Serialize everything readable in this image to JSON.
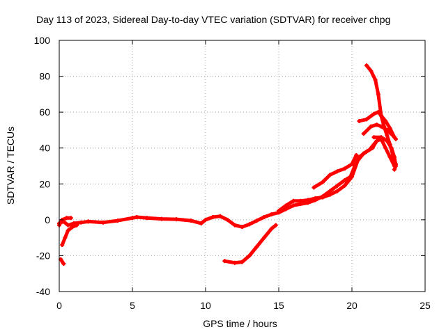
{
  "chart_data": {
    "type": "scatter",
    "title": "Day 113 of 2023, Sidereal Day-to-day VTEC variation (SDTVAR) for receiver chpg",
    "xlabel": "GPS time / hours",
    "ylabel": "SDTVAR / TECUs",
    "xlim": [
      0,
      25
    ],
    "ylim": [
      -40,
      100
    ],
    "xticks": [
      0,
      5,
      10,
      15,
      20,
      25
    ],
    "yticks": [
      -40,
      -20,
      0,
      20,
      40,
      60,
      80,
      100
    ],
    "grid": true,
    "series_color": "#ff0000",
    "series": [
      {
        "name": "trace-main",
        "points": [
          [
            0.0,
            -2
          ],
          [
            0.3,
            -1
          ],
          [
            0.6,
            -3
          ],
          [
            1.0,
            -2
          ],
          [
            1.5,
            -1.5
          ],
          [
            2.0,
            -1
          ],
          [
            3.0,
            -1.5
          ],
          [
            4.0,
            -0.5
          ],
          [
            5.0,
            1
          ],
          [
            5.3,
            1.5
          ],
          [
            6.0,
            1
          ],
          [
            7.0,
            0.5
          ],
          [
            8.0,
            0.3
          ],
          [
            9.0,
            -0.5
          ],
          [
            9.7,
            -2
          ],
          [
            10.0,
            0
          ],
          [
            10.5,
            1.5
          ],
          [
            11.0,
            2
          ],
          [
            11.5,
            0
          ],
          [
            12.0,
            -3
          ],
          [
            12.5,
            -4
          ],
          [
            13.0,
            -2.5
          ],
          [
            13.5,
            -0.5
          ],
          [
            14.0,
            1.5
          ],
          [
            14.5,
            3
          ],
          [
            15.0,
            4
          ],
          [
            15.5,
            6
          ],
          [
            16.0,
            8
          ],
          [
            17.0,
            9.5
          ],
          [
            17.5,
            11
          ],
          [
            18.0,
            13
          ],
          [
            18.5,
            16
          ],
          [
            19.0,
            19
          ],
          [
            19.5,
            22
          ],
          [
            19.9,
            24
          ],
          [
            20.2,
            30
          ],
          [
            20.5,
            35
          ],
          [
            21.0,
            38
          ],
          [
            21.4,
            40
          ],
          [
            21.7,
            44
          ],
          [
            22.0,
            45
          ],
          [
            22.3,
            40
          ],
          [
            22.6,
            35
          ],
          [
            22.9,
            30
          ]
        ]
      },
      {
        "name": "trace-start-low",
        "points": [
          [
            0.1,
            -22
          ],
          [
            0.3,
            -24.5
          ]
        ]
      },
      {
        "name": "trace-start-drop",
        "points": [
          [
            0.2,
            -14
          ],
          [
            0.4,
            -10
          ],
          [
            0.6,
            -6
          ],
          [
            0.9,
            -4
          ],
          [
            1.2,
            -3
          ]
        ]
      },
      {
        "name": "trace-start-upper",
        "points": [
          [
            0.0,
            -3
          ],
          [
            0.2,
            0
          ],
          [
            0.5,
            1
          ],
          [
            0.8,
            1
          ]
        ]
      },
      {
        "name": "trace-dip",
        "points": [
          [
            11.3,
            -23
          ],
          [
            12.0,
            -24
          ],
          [
            12.5,
            -23.5
          ],
          [
            13.0,
            -20
          ],
          [
            13.5,
            -15
          ],
          [
            14.0,
            -10
          ],
          [
            14.5,
            -5
          ],
          [
            14.8,
            -3
          ]
        ]
      },
      {
        "name": "trace-mid-upper",
        "points": [
          [
            15.0,
            5
          ],
          [
            15.5,
            8
          ],
          [
            16.0,
            10.5
          ],
          [
            16.5,
            10.5
          ],
          [
            17.0,
            11
          ],
          [
            17.5,
            12
          ],
          [
            18.0,
            12.5
          ],
          [
            18.5,
            14
          ],
          [
            19.0,
            16
          ],
          [
            19.5,
            19
          ],
          [
            20.0,
            24
          ],
          [
            20.4,
            33
          ],
          [
            20.8,
            37
          ],
          [
            21.2,
            39
          ],
          [
            21.5,
            42
          ],
          [
            21.7,
            44
          ]
        ]
      },
      {
        "name": "trace-branch",
        "points": [
          [
            17.4,
            18
          ],
          [
            18.0,
            21
          ],
          [
            18.5,
            25
          ],
          [
            19.0,
            27
          ],
          [
            19.5,
            28.5
          ],
          [
            20.0,
            31
          ],
          [
            20.3,
            36
          ]
        ]
      },
      {
        "name": "trace-peak",
        "points": [
          [
            21.0,
            86
          ],
          [
            21.3,
            83
          ],
          [
            21.6,
            78
          ],
          [
            21.8,
            70
          ],
          [
            22.0,
            58
          ],
          [
            22.2,
            52
          ],
          [
            22.4,
            47
          ],
          [
            22.6,
            42
          ],
          [
            22.8,
            36
          ],
          [
            23.0,
            31
          ]
        ]
      },
      {
        "name": "trace-side-a",
        "points": [
          [
            20.5,
            55
          ],
          [
            21.0,
            56
          ],
          [
            21.5,
            59
          ],
          [
            21.8,
            60
          ],
          [
            22.0,
            58
          ],
          [
            22.3,
            55
          ],
          [
            22.6,
            51
          ],
          [
            22.9,
            46
          ]
        ]
      },
      {
        "name": "trace-side-b",
        "points": [
          [
            20.8,
            48
          ],
          [
            21.3,
            52
          ],
          [
            21.7,
            53
          ],
          [
            22.0,
            52
          ],
          [
            22.4,
            50
          ],
          [
            22.8,
            47
          ],
          [
            23.0,
            45
          ]
        ]
      },
      {
        "name": "trace-side-c",
        "points": [
          [
            21.5,
            46
          ],
          [
            22.0,
            46
          ],
          [
            22.4,
            44
          ],
          [
            22.7,
            40
          ],
          [
            22.9,
            35
          ],
          [
            23.0,
            30
          ],
          [
            22.9,
            28
          ]
        ]
      }
    ]
  }
}
